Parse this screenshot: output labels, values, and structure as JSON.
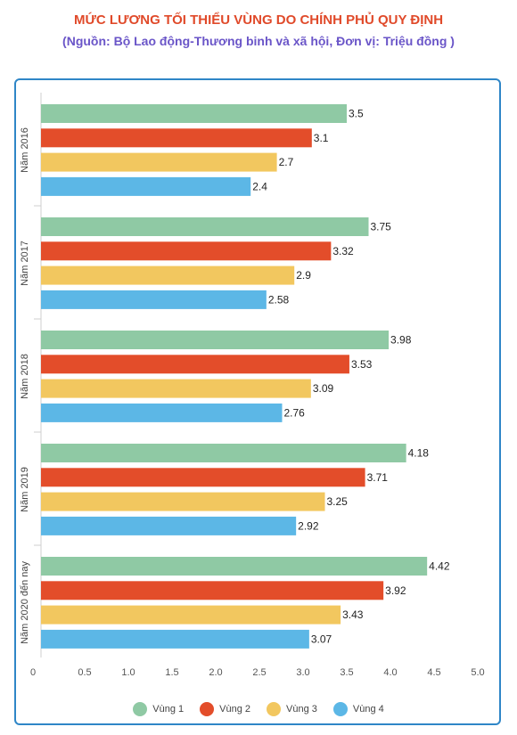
{
  "title": "MỨC LƯƠNG TỐI THIỂU VÙNG DO CHÍNH PHỦ QUY ĐỊNH",
  "subtitle": "(Nguồn: Bộ Lao động-Thương binh và xã hội, Đơn vị: Triệu đồng )",
  "colors": {
    "frame": "#2f86c7",
    "title": "#e04a2a",
    "subtitle": "#6a55c8"
  },
  "chart_data": {
    "type": "bar",
    "orientation": "horizontal",
    "categories": [
      "Năm 2016",
      "Năm 2017",
      "Năm 2018",
      "Năm 2019",
      "Năm 2020 đến nay"
    ],
    "series": [
      {
        "name": "Vùng 1",
        "color": "#8fc9a4",
        "values": [
          3.5,
          3.75,
          3.98,
          4.18,
          4.42
        ]
      },
      {
        "name": "Vùng 2",
        "color": "#e34d2a",
        "values": [
          3.1,
          3.32,
          3.53,
          3.71,
          3.92
        ]
      },
      {
        "name": "Vùng 3",
        "color": "#f2c75f",
        "values": [
          2.7,
          2.9,
          3.09,
          3.25,
          3.43
        ]
      },
      {
        "name": "Vùng 4",
        "color": "#5cb7e6",
        "values": [
          2.4,
          2.58,
          2.76,
          2.92,
          3.07
        ]
      }
    ],
    "x_ticks": [
      "0",
      "0.5",
      "1.0",
      "1.5",
      "2.0",
      "2.5",
      "3.0",
      "3.5",
      "4.0",
      "4.5",
      "5.0"
    ],
    "xlim": [
      0,
      5
    ],
    "grid": false,
    "data_labels": true,
    "legend_position": "bottom"
  }
}
